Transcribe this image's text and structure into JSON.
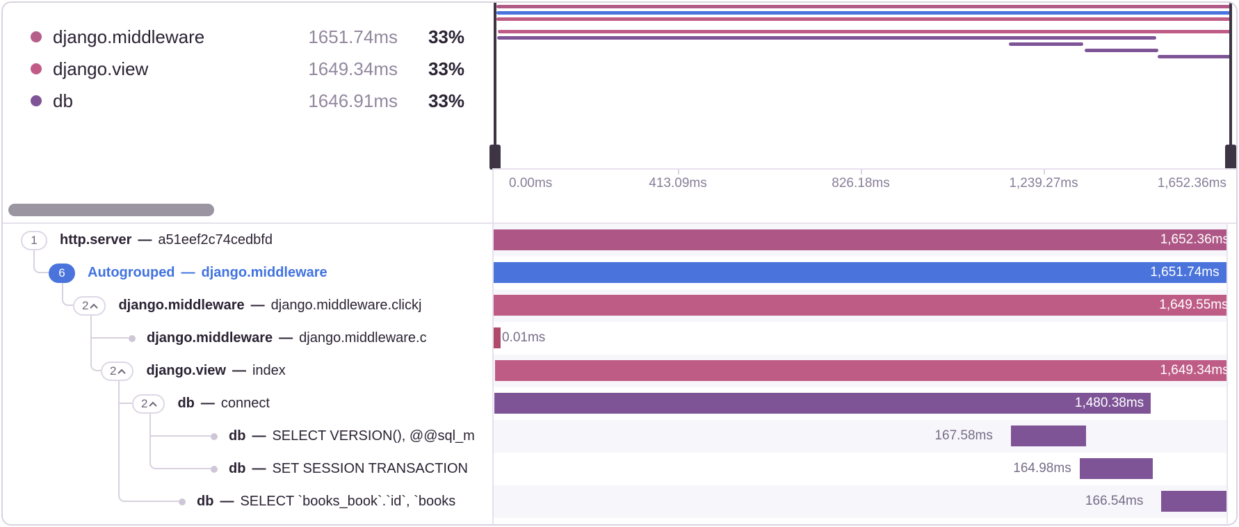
{
  "trace": {
    "total_ms": 1652.36,
    "separator": "—"
  },
  "legend": {
    "rows": [
      {
        "name": "django.middleware",
        "duration": "1651.74ms",
        "percent": "33%",
        "color": "#B55E8A"
      },
      {
        "name": "django.view",
        "duration": "1649.34ms",
        "percent": "33%",
        "color": "#C25A87"
      },
      {
        "name": "db",
        "duration": "1646.91ms",
        "percent": "33%",
        "color": "#7E5497"
      }
    ]
  },
  "minimap": {
    "bars": [
      {
        "start_ms": 0,
        "duration_ms": 1652.36,
        "color": "#B25A87"
      },
      {
        "start_ms": 0,
        "duration_ms": 1651.74,
        "color": "#4A74DC"
      },
      {
        "start_ms": 0.6,
        "duration_ms": 1649.55,
        "color": "#BF5C86"
      },
      {
        "start_ms": 0,
        "duration_ms": 0.01,
        "color": "#AF4A6A"
      },
      {
        "start_ms": 2.6,
        "duration_ms": 1649.34,
        "color": "#BF5C86"
      },
      {
        "start_ms": 1.4,
        "duration_ms": 1480.38,
        "color": "#7E5497"
      },
      {
        "start_ms": 1150.9,
        "duration_ms": 167.58,
        "color": "#7E5497"
      },
      {
        "start_ms": 1321.1,
        "duration_ms": 164.98,
        "color": "#7E5497"
      },
      {
        "start_ms": 1485.8,
        "duration_ms": 166.54,
        "color": "#7E5497"
      }
    ]
  },
  "axis": {
    "ticks": [
      {
        "label": "0.00ms"
      },
      {
        "label": "413.09ms"
      },
      {
        "label": "826.18ms"
      },
      {
        "label": "1,239.27ms"
      },
      {
        "label": "1,652.36ms"
      }
    ]
  },
  "tree": {
    "rows": [
      {
        "badge": "1",
        "name": "http.server",
        "desc": "a51eef2c74cedbfd",
        "bar": {
          "start_ms": 0,
          "duration_ms": 1652.36,
          "color": "#AE5786",
          "label": "1,652.36ms",
          "label_pos": "inside"
        }
      },
      {
        "badge": "6",
        "name": "Autogrouped",
        "desc": "django.middleware",
        "bar": {
          "start_ms": 0,
          "duration_ms": 1651.74,
          "color": "#4A74DC",
          "label": "1,651.74ms",
          "label_pos": "inside"
        }
      },
      {
        "badge": "2",
        "name": "django.middleware",
        "desc": "django.middleware.clickj",
        "bar": {
          "start_ms": 0.6,
          "duration_ms": 1649.55,
          "color": "#BE5C86",
          "label": "1,649.55ms",
          "label_pos": "inside"
        }
      },
      {
        "badge": null,
        "name": "django.middleware",
        "desc": "django.middleware.c",
        "bar": {
          "start_ms": 0,
          "duration_ms": 0.01,
          "color": "#AF4A6A",
          "label": "0.01ms",
          "label_pos": "right"
        }
      },
      {
        "badge": "2",
        "name": "django.view",
        "desc": "index",
        "bar": {
          "start_ms": 2.6,
          "duration_ms": 1649.34,
          "color": "#BE5C86",
          "label": "1,649.34ms",
          "label_pos": "inside"
        }
      },
      {
        "badge": "2",
        "name": "db",
        "desc": "connect",
        "bar": {
          "start_ms": 1.4,
          "duration_ms": 1480.38,
          "color": "#7E5497",
          "label": "1,480.38ms",
          "label_pos": "inside"
        }
      },
      {
        "badge": null,
        "name": "db",
        "desc": "SELECT VERSION(), @@sql_m",
        "bar": {
          "start_ms": 1150.9,
          "duration_ms": 167.58,
          "color": "#7E5497",
          "label": "167.58ms",
          "label_pos": "left"
        }
      },
      {
        "badge": null,
        "name": "db",
        "desc": "SET SESSION TRANSACTION",
        "bar": {
          "start_ms": 1321.1,
          "duration_ms": 164.98,
          "color": "#7E5497",
          "label": "164.98ms",
          "label_pos": "left"
        }
      },
      {
        "badge": null,
        "name": "db",
        "desc": "SELECT `books_book`.`id`, `books",
        "bar": {
          "start_ms": 1485.8,
          "duration_ms": 166.54,
          "color": "#7E5497",
          "label": "166.54ms",
          "label_pos": "left"
        }
      }
    ]
  }
}
